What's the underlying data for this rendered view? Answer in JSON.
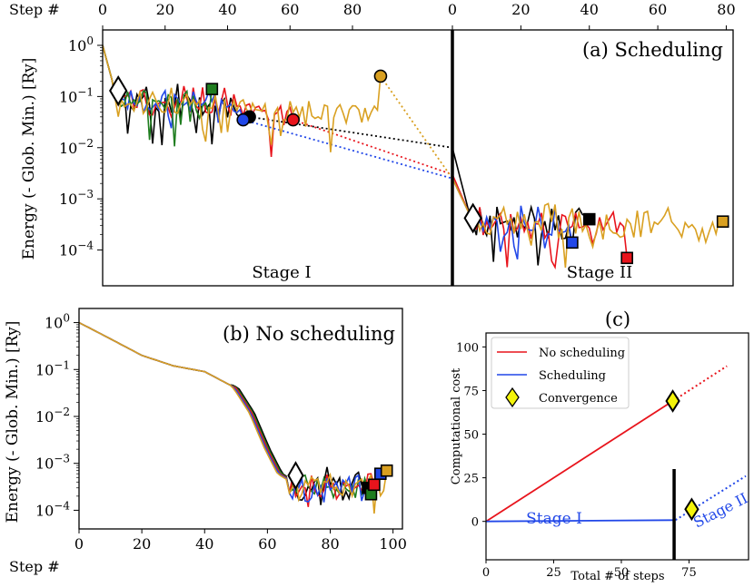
{
  "colors": {
    "black": "#000000",
    "red": "#e8141c",
    "blue": "#2147e8",
    "green": "#1f7d1f",
    "orange": "#d9a021",
    "yellow": "#f4f40a"
  },
  "chart_data": [
    {
      "id": "a",
      "type": "line",
      "title": "(a) Scheduling",
      "ylabel": "Energy (- Glob. Min.) [Ry]",
      "xlabel": "Step #",
      "yscale": "log",
      "ylim": [
        2e-05,
        2
      ],
      "yticks": [
        {
          "v": 1,
          "e": "0"
        },
        {
          "v": 0.1,
          "e": "−1"
        },
        {
          "v": 0.01,
          "e": "−2"
        },
        {
          "v": 0.001,
          "e": "−3"
        },
        {
          "v": 0.0001,
          "e": "−4"
        }
      ],
      "ytick_base": "10",
      "panels": [
        {
          "name": "Stage I",
          "xlim": [
            0,
            112
          ],
          "xticks": [
            0,
            20,
            40,
            60,
            80
          ],
          "stage_label": "Stage I"
        },
        {
          "name": "Stage II",
          "xlim": [
            0,
            82
          ],
          "xticks": [
            0,
            20,
            40,
            60,
            80
          ],
          "stage_label": "Stage II"
        }
      ],
      "series": [
        {
          "name": "black",
          "color": "black",
          "s1_end": 47,
          "s1_end_val": 0.04,
          "s2_end": 40,
          "s2_end_val": 0.0004,
          "junction": 0.01
        },
        {
          "name": "red",
          "color": "red",
          "s1_end": 61,
          "s1_end_val": 0.035,
          "s2_end": 51,
          "s2_end_val": 7e-05,
          "junction": 0.003
        },
        {
          "name": "blue",
          "color": "blue",
          "s1_end": 45,
          "s1_end_val": 0.035,
          "s2_end": 35,
          "s2_end_val": 0.00014,
          "junction": 0.0025
        },
        {
          "name": "green",
          "color": "green",
          "s1_end": 35,
          "s1_end_val": 0.14,
          "s2_end": null,
          "junction": null
        },
        {
          "name": "orange",
          "color": "orange",
          "s1_end": 89,
          "s1_end_val": 0.25,
          "s2_end": 79,
          "s2_end_val": 0.00036,
          "junction": 0.0025
        }
      ],
      "convergence": [
        {
          "panel": 0,
          "x": 5,
          "y": 0.13
        },
        {
          "panel": 1,
          "x": 6,
          "y": 0.00042
        }
      ]
    },
    {
      "id": "b",
      "type": "line",
      "title": "(b) No scheduling",
      "ylabel": "Energy (- Glob. Min.) [Ry]",
      "xlabel": "Step #",
      "yscale": "log",
      "xlim": [
        0,
        103
      ],
      "xticks": [
        0,
        20,
        40,
        60,
        80,
        100
      ],
      "ylim": [
        4e-05,
        2
      ],
      "yticks": [
        {
          "v": 1,
          "e": "0"
        },
        {
          "v": 0.1,
          "e": "−1"
        },
        {
          "v": 0.01,
          "e": "−2"
        },
        {
          "v": 0.001,
          "e": "−3"
        },
        {
          "v": 0.0001,
          "e": "−4"
        }
      ],
      "ytick_base": "10",
      "series": [
        {
          "name": "black",
          "color": "black",
          "end": 92,
          "end_val": 0.0003
        },
        {
          "name": "green",
          "color": "green",
          "end": 93,
          "end_val": 0.00022
        },
        {
          "name": "red",
          "color": "red",
          "end": 94,
          "end_val": 0.00035
        },
        {
          "name": "blue",
          "color": "blue",
          "end": 96,
          "end_val": 0.0006
        },
        {
          "name": "orange",
          "color": "orange",
          "end": 98,
          "end_val": 0.0007
        }
      ],
      "convergence": {
        "x": 69,
        "y": 0.00055
      }
    },
    {
      "id": "c",
      "type": "line",
      "title": "(c)",
      "xlabel": "Total # of steps",
      "ylabel": "Computational cost",
      "xlim": [
        0,
        97
      ],
      "ylim": [
        -22,
        108
      ],
      "xticks": [
        0,
        25,
        50,
        75
      ],
      "yticks": [
        0,
        25,
        50,
        75,
        100
      ],
      "legend": [
        "No scheduling",
        "Scheduling",
        "Convergence"
      ],
      "series": [
        {
          "name": "No scheduling",
          "color": "red",
          "solid": [
            [
              0,
              0
            ],
            [
              69,
              69
            ]
          ],
          "dotted": [
            [
              69,
              69
            ],
            [
              89,
              89
            ]
          ]
        },
        {
          "name": "Scheduling",
          "color": "blue",
          "solid": [
            [
              0,
              0
            ],
            [
              69,
              0.7
            ]
          ],
          "jump": [
            [
              69,
              0.7
            ],
            [
              70,
              0.8
            ]
          ],
          "dotted": [
            [
              70,
              0.8
            ],
            [
              96,
              26
            ]
          ]
        }
      ],
      "convergence": [
        {
          "x": 69,
          "y": 69
        },
        {
          "x": 76,
          "y": 7
        }
      ],
      "divider_x": 69.5,
      "stage_labels": [
        {
          "text": "Stage I"
        },
        {
          "text": "Stage II"
        }
      ]
    }
  ]
}
